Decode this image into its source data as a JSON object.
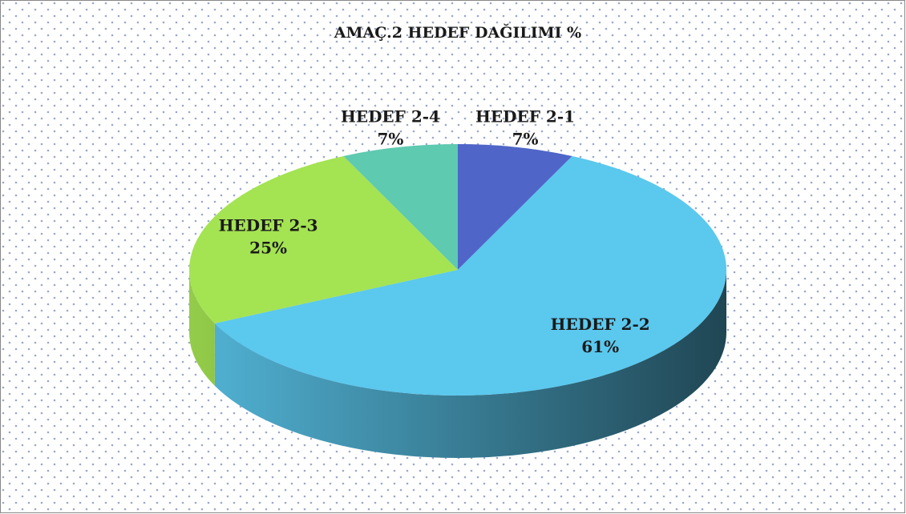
{
  "chart_data": {
    "type": "pie3d",
    "title": "AMAÇ.2 HEDEF DAĞILIMI %",
    "categories": [
      "HEDEF 2-1",
      "HEDEF 2-2",
      "HEDEF 2-3",
      "HEDEF 2-4"
    ],
    "values": [
      7,
      61,
      25,
      7
    ],
    "value_labels": [
      "7%",
      "61%",
      "25%",
      "7%"
    ],
    "colors": [
      "#4f66c8",
      "#5bc8ee",
      "#a4e352",
      "#5ecab0"
    ]
  }
}
